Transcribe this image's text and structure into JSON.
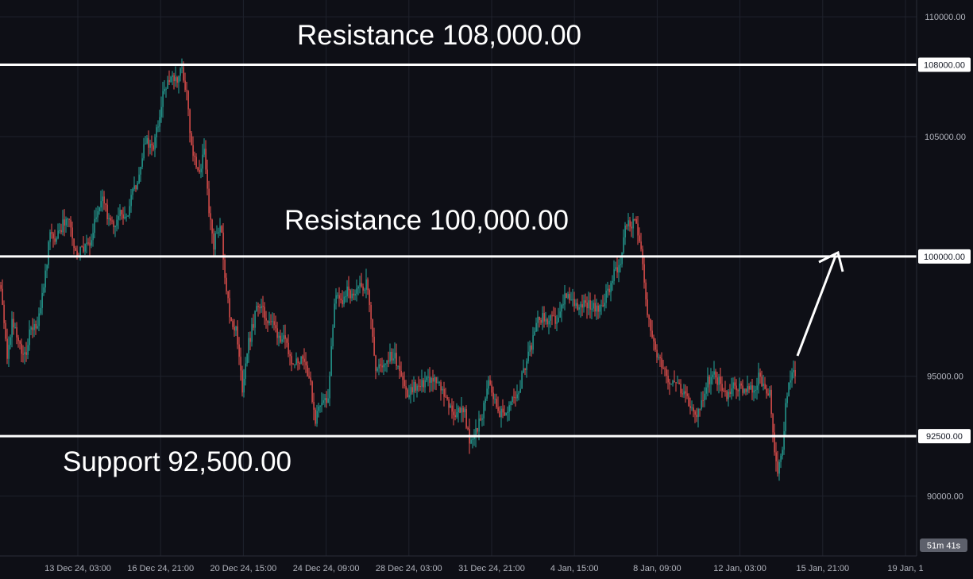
{
  "chart_data": {
    "type": "candlestick",
    "y_axis": {
      "ticks": [
        "110000.00",
        "105000.00",
        "95000.00",
        "90000.00"
      ],
      "ylim": [
        87500,
        110700
      ]
    },
    "x_axis": {
      "ticks": [
        "13 Dec 24, 03:00",
        "16 Dec 24, 21:00",
        "20 Dec 24, 15:00",
        "24 Dec 24, 09:00",
        "28 Dec 24, 03:00",
        "31 Dec 24, 21:00",
        "4 Jan, 15:00",
        "8 Jan, 09:00",
        "12 Jan, 03:00",
        "15 Jan, 21:00",
        "19 Jan, 1"
      ]
    },
    "levels": [
      {
        "value": 108000,
        "label": "Resistance 108,000.00",
        "axis_tag": "108000.00"
      },
      {
        "value": 100000,
        "label": "Resistance 100,000.00",
        "axis_tag": "100000.00"
      },
      {
        "value": 92500,
        "label": "Support 92,500.00",
        "axis_tag": "92500.00"
      }
    ],
    "countdown": "51m 41s",
    "price_path": [
      [
        0,
        98800
      ],
      [
        8,
        95500
      ],
      [
        14,
        97200
      ],
      [
        22,
        96400
      ],
      [
        30,
        95800
      ],
      [
        38,
        97100
      ],
      [
        46,
        97000
      ],
      [
        54,
        98700
      ],
      [
        62,
        101000
      ],
      [
        70,
        100800
      ],
      [
        78,
        101400
      ],
      [
        86,
        101600
      ],
      [
        94,
        100100
      ],
      [
        102,
        100300
      ],
      [
        110,
        100400
      ],
      [
        118,
        101400
      ],
      [
        126,
        102400
      ],
      [
        134,
        101800
      ],
      [
        142,
        101200
      ],
      [
        150,
        101900
      ],
      [
        158,
        101500
      ],
      [
        166,
        102600
      ],
      [
        174,
        103400
      ],
      [
        182,
        104800
      ],
      [
        190,
        104400
      ],
      [
        198,
        105600
      ],
      [
        206,
        107000
      ],
      [
        214,
        107400
      ],
      [
        222,
        107300
      ],
      [
        228,
        107800
      ],
      [
        234,
        106700
      ],
      [
        240,
        104700
      ],
      [
        248,
        103500
      ],
      [
        256,
        104300
      ],
      [
        262,
        102000
      ],
      [
        268,
        100500
      ],
      [
        276,
        101500
      ],
      [
        282,
        99300
      ],
      [
        288,
        97500
      ],
      [
        296,
        96900
      ],
      [
        304,
        94500
      ],
      [
        310,
        96100
      ],
      [
        318,
        97200
      ],
      [
        324,
        98100
      ],
      [
        332,
        97500
      ],
      [
        340,
        97300
      ],
      [
        348,
        96800
      ],
      [
        356,
        96500
      ],
      [
        364,
        95800
      ],
      [
        372,
        95600
      ],
      [
        380,
        95900
      ],
      [
        388,
        95000
      ],
      [
        396,
        93200
      ],
      [
        404,
        94100
      ],
      [
        412,
        93900
      ],
      [
        420,
        98200
      ],
      [
        428,
        98100
      ],
      [
        436,
        98500
      ],
      [
        444,
        98200
      ],
      [
        452,
        98700
      ],
      [
        460,
        98900
      ],
      [
        466,
        97600
      ],
      [
        472,
        95200
      ],
      [
        480,
        95500
      ],
      [
        488,
        95800
      ],
      [
        496,
        95800
      ],
      [
        504,
        95200
      ],
      [
        512,
        94100
      ],
      [
        520,
        94600
      ],
      [
        528,
        94500
      ],
      [
        536,
        94900
      ],
      [
        544,
        94800
      ],
      [
        552,
        94600
      ],
      [
        560,
        94200
      ],
      [
        568,
        93400
      ],
      [
        576,
        93600
      ],
      [
        584,
        93500
      ],
      [
        590,
        92100
      ],
      [
        598,
        92700
      ],
      [
        606,
        93300
      ],
      [
        614,
        95000
      ],
      [
        622,
        93900
      ],
      [
        630,
        93400
      ],
      [
        638,
        93600
      ],
      [
        646,
        94100
      ],
      [
        654,
        94600
      ],
      [
        662,
        95800
      ],
      [
        670,
        96500
      ],
      [
        678,
        97500
      ],
      [
        686,
        97300
      ],
      [
        694,
        97300
      ],
      [
        702,
        97300
      ],
      [
        710,
        98300
      ],
      [
        718,
        98100
      ],
      [
        726,
        98000
      ],
      [
        734,
        98100
      ],
      [
        742,
        98000
      ],
      [
        750,
        97700
      ],
      [
        758,
        98100
      ],
      [
        766,
        98700
      ],
      [
        774,
        99500
      ],
      [
        780,
        99700
      ],
      [
        786,
        101400
      ],
      [
        794,
        101300
      ],
      [
        800,
        101400
      ],
      [
        806,
        100500
      ],
      [
        812,
        98200
      ],
      [
        818,
        96700
      ],
      [
        826,
        95900
      ],
      [
        834,
        95500
      ],
      [
        842,
        94800
      ],
      [
        850,
        94900
      ],
      [
        858,
        94200
      ],
      [
        866,
        93900
      ],
      [
        874,
        93300
      ],
      [
        882,
        93900
      ],
      [
        890,
        94800
      ],
      [
        898,
        95000
      ],
      [
        906,
        94700
      ],
      [
        914,
        94200
      ],
      [
        922,
        94600
      ],
      [
        930,
        94500
      ],
      [
        938,
        94500
      ],
      [
        946,
        94400
      ],
      [
        954,
        94900
      ],
      [
        962,
        94300
      ],
      [
        968,
        94200
      ],
      [
        974,
        91800
      ],
      [
        978,
        90800
      ],
      [
        984,
        92100
      ],
      [
        990,
        94400
      ],
      [
        996,
        95100
      ],
      [
        1000,
        95200
      ]
    ]
  }
}
